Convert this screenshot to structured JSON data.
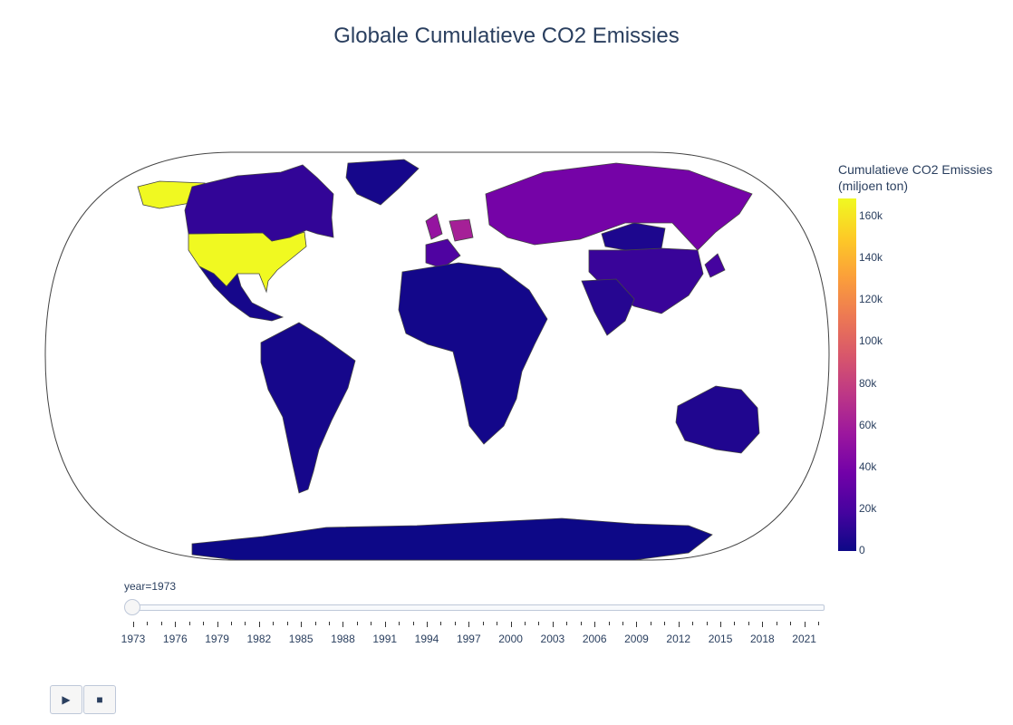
{
  "title": "Globale Cumulatieve CO2 Emissies",
  "colorbar": {
    "title_line1": "Cumulatieve CO2 Emissies",
    "title_line2": "(miljoen ton)",
    "ticks": [
      "160k",
      "140k",
      "120k",
      "100k",
      "80k",
      "60k",
      "40k",
      "20k",
      "0"
    ],
    "colorscale": [
      "#0d0887",
      "#46039f",
      "#7201a8",
      "#9c179e",
      "#bd3786",
      "#d8576b",
      "#ed7953",
      "#fb9f3a",
      "#fdca26",
      "#f0f921"
    ]
  },
  "slider": {
    "current_label": "year=1973",
    "tick_labels": [
      "1973",
      "1976",
      "1979",
      "1982",
      "1985",
      "1988",
      "1991",
      "1994",
      "1997",
      "2000",
      "2003",
      "2006",
      "2009",
      "2012",
      "2015",
      "2018",
      "2021"
    ]
  },
  "controls": {
    "play_icon": "▶",
    "stop_icon": "■"
  },
  "chart_data": {
    "type": "choropleth",
    "projection": "natural earth",
    "year": 1973,
    "color_range": [
      0,
      165000
    ],
    "regions": [
      {
        "name": "United States",
        "value": 165000
      },
      {
        "name": "Alaska",
        "value": 165000
      },
      {
        "name": "Canada",
        "value": 12000
      },
      {
        "name": "Greenland",
        "value": 3000
      },
      {
        "name": "Mexico",
        "value": 3000
      },
      {
        "name": "Russia",
        "value": 38000
      },
      {
        "name": "China",
        "value": 14000
      },
      {
        "name": "Mongolia",
        "value": 5000
      },
      {
        "name": "United Kingdom",
        "value": 52000
      },
      {
        "name": "Germany",
        "value": 60000
      },
      {
        "name": "France",
        "value": 22000
      },
      {
        "name": "Japan",
        "value": 18000
      },
      {
        "name": "India",
        "value": 8000
      },
      {
        "name": "Australia",
        "value": 6000
      },
      {
        "name": "Brazil",
        "value": 3000
      },
      {
        "name": "Africa",
        "value": 2000
      },
      {
        "name": "Antarctica",
        "value": 0
      }
    ]
  }
}
